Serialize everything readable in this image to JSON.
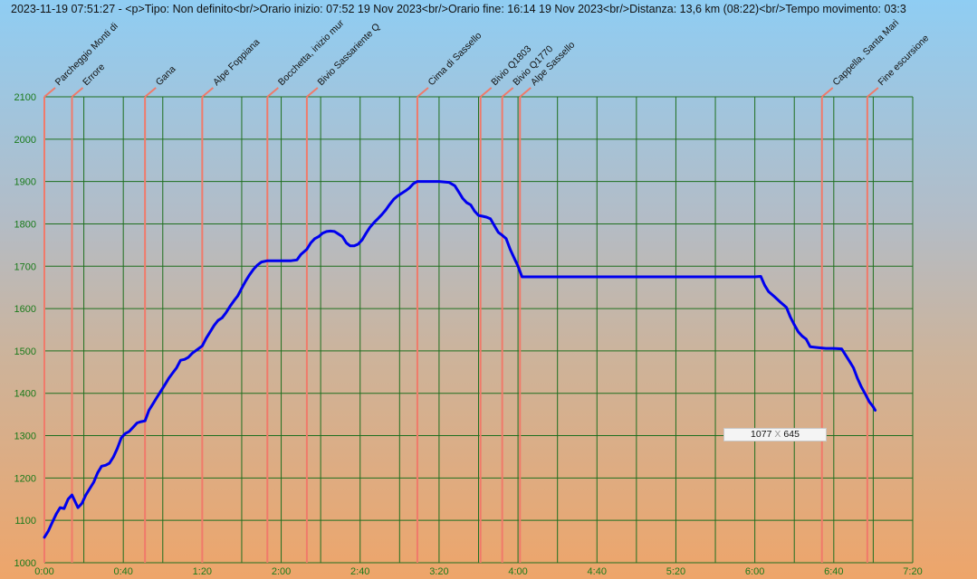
{
  "header": {
    "text": "2023-11-19 07:51:27 - <p>Tipo: Non definito<br/>Orario inizio: 07:52 19 Nov 2023<br/>Orario fine: 16:14 19 Nov 2023<br/>Distanza: 13,6 km (08:22)<br/>Tempo movimento: 03:3"
  },
  "readout": {
    "x": "1077",
    "sep": "X",
    "y": "645"
  },
  "colors": {
    "grid": "#1f6f1f",
    "line": "#0000ee",
    "marker": "#f07a6a",
    "tick": "#1a7a1a"
  },
  "chart_data": {
    "type": "line",
    "title": "",
    "xlabel": "",
    "ylabel": "",
    "xlim": [
      0,
      440
    ],
    "ylim": [
      1000,
      2100
    ],
    "x_ticks": [
      0,
      40,
      80,
      120,
      160,
      200,
      240,
      280,
      320,
      360,
      400,
      440
    ],
    "x_tick_labels": [
      "0:00",
      "0:40",
      "1:20",
      "2:00",
      "2:40",
      "3:20",
      "4:00",
      "4:40",
      "5:20",
      "6:00",
      "6:40",
      "7:20"
    ],
    "y_ticks": [
      1000,
      1100,
      1200,
      1300,
      1400,
      1500,
      1600,
      1700,
      1800,
      1900,
      2000,
      2100
    ],
    "x_gridlines": [
      0,
      20,
      40,
      60,
      80,
      100,
      120,
      140,
      160,
      180,
      200,
      220,
      240,
      260,
      280,
      300,
      320,
      340,
      360,
      380,
      400,
      420,
      440
    ],
    "grid": true,
    "waypoints": [
      {
        "t": 0,
        "label": "Parcheggio Monti di"
      },
      {
        "t": 14,
        "label": "Errore"
      },
      {
        "t": 51,
        "label": "Gana"
      },
      {
        "t": 80,
        "label": "Alpe Foppiana"
      },
      {
        "t": 113,
        "label": "Bocchetta, inizio mur"
      },
      {
        "t": 133,
        "label": "Bivio Sassariente Q"
      },
      {
        "t": 189,
        "label": "Cima di Sassello"
      },
      {
        "t": 221,
        "label": "Bivio Q1803"
      },
      {
        "t": 232,
        "label": "Bivio Q1770"
      },
      {
        "t": 241,
        "label": "Alpe Sassello"
      },
      {
        "t": 394,
        "label": "Cappella, Santa Mari"
      },
      {
        "t": 417,
        "label": "Fine escursione"
      }
    ],
    "series": [
      {
        "points": [
          [
            0,
            1060
          ],
          [
            2,
            1075
          ],
          [
            4,
            1095
          ],
          [
            6,
            1115
          ],
          [
            8,
            1130
          ],
          [
            10,
            1128
          ],
          [
            12,
            1150
          ],
          [
            14,
            1160
          ],
          [
            15,
            1150
          ],
          [
            17,
            1130
          ],
          [
            19,
            1140
          ],
          [
            21,
            1160
          ],
          [
            23,
            1175
          ],
          [
            25,
            1190
          ],
          [
            27,
            1212
          ],
          [
            29,
            1228
          ],
          [
            31,
            1230
          ],
          [
            33,
            1235
          ],
          [
            35,
            1250
          ],
          [
            37,
            1270
          ],
          [
            39,
            1295
          ],
          [
            41,
            1305
          ],
          [
            43,
            1310
          ],
          [
            45,
            1320
          ],
          [
            47,
            1330
          ],
          [
            49,
            1333
          ],
          [
            51,
            1335
          ],
          [
            53,
            1360
          ],
          [
            55,
            1375
          ],
          [
            57,
            1390
          ],
          [
            59,
            1405
          ],
          [
            61,
            1420
          ],
          [
            63,
            1435
          ],
          [
            65,
            1448
          ],
          [
            67,
            1460
          ],
          [
            69,
            1478
          ],
          [
            71,
            1480
          ],
          [
            73,
            1485
          ],
          [
            75,
            1495
          ],
          [
            78,
            1505
          ],
          [
            80,
            1512
          ],
          [
            82,
            1530
          ],
          [
            84,
            1545
          ],
          [
            86,
            1560
          ],
          [
            88,
            1572
          ],
          [
            90,
            1578
          ],
          [
            92,
            1590
          ],
          [
            94,
            1605
          ],
          [
            96,
            1618
          ],
          [
            98,
            1630
          ],
          [
            100,
            1648
          ],
          [
            102,
            1665
          ],
          [
            104,
            1680
          ],
          [
            106,
            1693
          ],
          [
            108,
            1703
          ],
          [
            110,
            1710
          ],
          [
            113,
            1713
          ],
          [
            115,
            1713
          ],
          [
            120,
            1713
          ],
          [
            125,
            1713
          ],
          [
            128,
            1715
          ],
          [
            130,
            1728
          ],
          [
            133,
            1740
          ],
          [
            135,
            1755
          ],
          [
            137,
            1765
          ],
          [
            139,
            1770
          ],
          [
            141,
            1778
          ],
          [
            143,
            1782
          ],
          [
            145,
            1783
          ],
          [
            147,
            1782
          ],
          [
            149,
            1776
          ],
          [
            151,
            1770
          ],
          [
            153,
            1755
          ],
          [
            155,
            1748
          ],
          [
            157,
            1748
          ],
          [
            159,
            1752
          ],
          [
            161,
            1762
          ],
          [
            163,
            1778
          ],
          [
            165,
            1792
          ],
          [
            167,
            1803
          ],
          [
            169,
            1812
          ],
          [
            171,
            1822
          ],
          [
            173,
            1833
          ],
          [
            175,
            1846
          ],
          [
            177,
            1858
          ],
          [
            179,
            1866
          ],
          [
            181,
            1872
          ],
          [
            183,
            1878
          ],
          [
            185,
            1885
          ],
          [
            187,
            1895
          ],
          [
            189,
            1900
          ],
          [
            195,
            1900
          ],
          [
            200,
            1900
          ],
          [
            205,
            1898
          ],
          [
            208,
            1890
          ],
          [
            210,
            1875
          ],
          [
            212,
            1860
          ],
          [
            214,
            1850
          ],
          [
            216,
            1845
          ],
          [
            218,
            1830
          ],
          [
            220,
            1820
          ],
          [
            222,
            1818
          ],
          [
            224,
            1816
          ],
          [
            226,
            1812
          ],
          [
            228,
            1796
          ],
          [
            230,
            1780
          ],
          [
            232,
            1773
          ],
          [
            234,
            1765
          ],
          [
            236,
            1740
          ],
          [
            238,
            1720
          ],
          [
            240,
            1700
          ],
          [
            242,
            1675
          ],
          [
            260,
            1675
          ],
          [
            300,
            1675
          ],
          [
            340,
            1675
          ],
          [
            360,
            1675
          ],
          [
            363,
            1676
          ],
          [
            365,
            1655
          ],
          [
            367,
            1640
          ],
          [
            370,
            1628
          ],
          [
            373,
            1615
          ],
          [
            376,
            1603
          ],
          [
            378,
            1580
          ],
          [
            380,
            1562
          ],
          [
            382,
            1545
          ],
          [
            384,
            1535
          ],
          [
            386,
            1528
          ],
          [
            388,
            1510
          ],
          [
            392,
            1508
          ],
          [
            396,
            1506
          ],
          [
            400,
            1506
          ],
          [
            404,
            1505
          ],
          [
            406,
            1490
          ],
          [
            408,
            1475
          ],
          [
            410,
            1460
          ],
          [
            412,
            1435
          ],
          [
            414,
            1415
          ],
          [
            416,
            1398
          ],
          [
            418,
            1380
          ],
          [
            420,
            1368
          ],
          [
            421,
            1360
          ]
        ]
      }
    ]
  }
}
